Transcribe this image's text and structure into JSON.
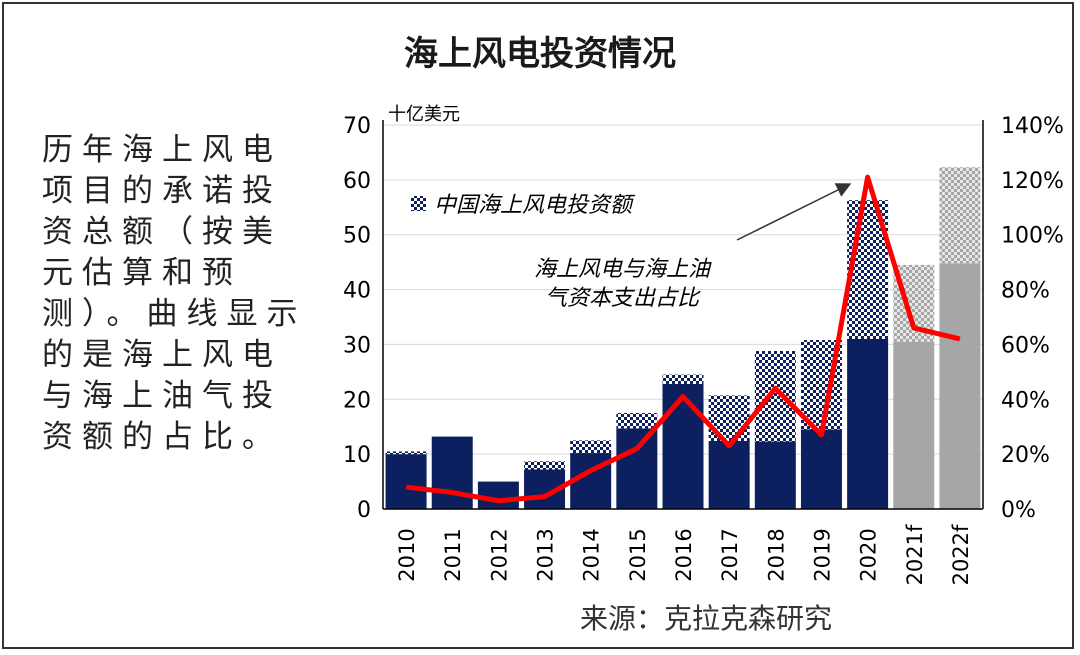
{
  "title": "海上风电投资情况",
  "description": "历年海上风电项目的承诺投资总额（按美元估算和预测）。曲线显示的是海上风电与海上油气投资额的占比。",
  "source": "来源：克拉克森研究",
  "chart_data": {
    "type": "bar",
    "y_unit_label": "十亿美元",
    "categories": [
      "2010",
      "2011",
      "2012",
      "2013",
      "2014",
      "2015",
      "2016",
      "2017",
      "2018",
      "2019",
      "2020",
      "2021f",
      "2022f"
    ],
    "series": [
      {
        "name": "中国海上风电投资额",
        "kind": "bar",
        "total_values": [
          10.5,
          13.2,
          5.0,
          8.7,
          12.5,
          17.5,
          24.5,
          20.7,
          28.8,
          30.8,
          56.3,
          44.5,
          62.3
        ],
        "china_values": [
          0.5,
          0,
          0,
          1.5,
          2.3,
          2.8,
          1.7,
          8.3,
          16.5,
          16.3,
          25.3,
          14.0,
          17.5
        ]
      },
      {
        "name": "海上风电与海上油气资本支出占比",
        "kind": "line",
        "axis": "right",
        "values": [
          8,
          6,
          3,
          4.5,
          14,
          22,
          41,
          23,
          44,
          27,
          121,
          66,
          62
        ]
      }
    ],
    "forecast_categories": [
      "2021f",
      "2022f"
    ],
    "left_axis": {
      "min": 0,
      "max": 70,
      "ticks": [
        0,
        10,
        20,
        30,
        40,
        50,
        60,
        70
      ]
    },
    "right_axis": {
      "min": 0,
      "max": 140,
      "ticks": [
        "0%",
        "20%",
        "40%",
        "60%",
        "80%",
        "100%",
        "120%",
        "140%"
      ]
    },
    "grid": true,
    "legend_position": "top-left",
    "annotation": {
      "lines": [
        "海上风电与海上油",
        "气资本支出占比"
      ],
      "points_to_category": "2020"
    },
    "colors": {
      "bar": "#0c1f5e",
      "forecast": "#a6a6a6",
      "line": "#ff0000",
      "grid": "#d9d9d9",
      "axis": "#000000"
    }
  }
}
